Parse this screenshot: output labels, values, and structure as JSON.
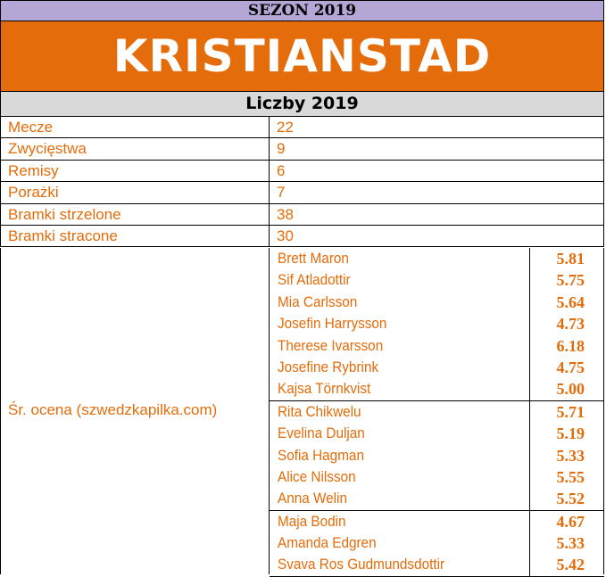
{
  "header": {
    "season": "SEZON 2019",
    "club": "KRISTIANSTAD",
    "section": "Liczby 2019"
  },
  "stats": [
    {
      "label": "Mecze",
      "value": "22"
    },
    {
      "label": "Zwycięstwa",
      "value": "9"
    },
    {
      "label": "Remisy",
      "value": "6"
    },
    {
      "label": "Porażki",
      "value": "7"
    },
    {
      "label": "Bramki strzelone",
      "value": "38"
    },
    {
      "label": "Bramki stracone",
      "value": "30"
    }
  ],
  "ratings": {
    "label": "Śr. ocena (szwedzkapilka.com)",
    "groups": [
      [
        {
          "name": "Brett Maron",
          "score": "5.81"
        },
        {
          "name": "Sif Atladottir",
          "score": "5.75"
        },
        {
          "name": "Mia Carlsson",
          "score": "5.64"
        },
        {
          "name": "Josefin Harrysson",
          "score": "4.73"
        },
        {
          "name": "Therese Ivarsson",
          "score": "6.18"
        },
        {
          "name": "Josefine Rybrink",
          "score": "4.75"
        },
        {
          "name": "Kajsa Törnkvist",
          "score": "5.00"
        }
      ],
      [
        {
          "name": "Rita Chikwelu",
          "score": "5.71"
        },
        {
          "name": "Evelina Duljan",
          "score": "5.19"
        },
        {
          "name": "Sofia Hagman",
          "score": "5.33"
        },
        {
          "name": "Alice Nilsson",
          "score": "5.55"
        },
        {
          "name": "Anna Welin",
          "score": "5.52"
        }
      ],
      [
        {
          "name": "Maja Bodin",
          "score": "4.67"
        },
        {
          "name": "Amanda Edgren",
          "score": "5.33"
        },
        {
          "name": "Svava Ros Gudmundsdottir",
          "score": "5.42"
        }
      ]
    ]
  }
}
